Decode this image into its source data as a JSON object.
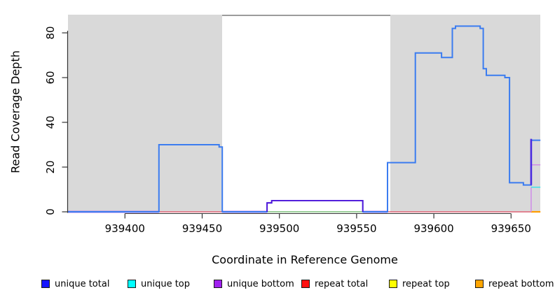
{
  "y_axis": {
    "title": "Read Coverage Depth",
    "ticks": [
      0,
      20,
      40,
      60,
      80
    ]
  },
  "x_axis": {
    "title": "Coordinate in Reference Genome",
    "ticks": [
      939400,
      939450,
      939500,
      939550,
      939600,
      939650
    ],
    "tick_labels": [
      "939400",
      "939450",
      "939500",
      "939550",
      "939600",
      "939650"
    ]
  },
  "legend": {
    "items": [
      {
        "label": "unique total",
        "color": "#1414ff"
      },
      {
        "label": "unique top",
        "color": "#00ffff"
      },
      {
        "label": "unique bottom",
        "color": "#a020f0"
      },
      {
        "label": "repeat total",
        "color": "#ff1010"
      },
      {
        "label": "repeat top",
        "color": "#ffff00"
      },
      {
        "label": "repeat bottom",
        "color": "#ffa500"
      }
    ]
  },
  "chart_data": {
    "type": "line",
    "subtype": "step-coverage-profile",
    "title": "",
    "xlabel": "Coordinate in Reference Genome",
    "ylabel": "Read Coverage Depth",
    "xlim": [
      939363,
      939669
    ],
    "ylim": [
      0,
      88
    ],
    "grid": false,
    "legend_position": "bottom",
    "shaded_regions": [
      {
        "x1": 939363,
        "x2": 939463,
        "fill": "#d9d9d9",
        "meaning": "shaded block left"
      },
      {
        "x1": 939572,
        "x2": 939669,
        "fill": "#d9d9d9",
        "meaning": "shaded block right"
      }
    ],
    "open_region": {
      "x1": 939463,
      "x2": 939572,
      "fill": "#ffffff",
      "top_border": "#9b9b9b"
    },
    "series": [
      {
        "name": "unique total",
        "legend_color": "#1414ff",
        "line_color": "#3b7cf0",
        "steps": [
          [
            939363,
            0
          ],
          [
            939422,
            30
          ],
          [
            939461,
            29
          ],
          [
            939463,
            0
          ],
          [
            939492,
            4
          ],
          [
            939495,
            5
          ],
          [
            939554,
            0
          ],
          [
            939570,
            22
          ],
          [
            939588,
            71
          ],
          [
            939605,
            69
          ],
          [
            939612,
            82
          ],
          [
            939614,
            83
          ],
          [
            939630,
            82
          ],
          [
            939632,
            64
          ],
          [
            939634,
            61
          ],
          [
            939646,
            60
          ],
          [
            939649,
            13
          ],
          [
            939658,
            12
          ],
          [
            939663,
            32
          ]
        ],
        "end_x": 939669
      },
      {
        "name": "unique top",
        "legend_color": "#00ffff",
        "line_color": "#3fe3e8",
        "steps": [
          [
            939363,
            0
          ],
          [
            939663,
            11
          ]
        ],
        "end_x": 939669
      },
      {
        "name": "unique bottom",
        "legend_color": "#a020f0",
        "line_color": "#5512d8",
        "steps": [
          [
            939363,
            0
          ],
          [
            939492,
            4
          ],
          [
            939495,
            5
          ],
          [
            939554,
            0
          ],
          [
            939663,
            21
          ]
        ],
        "end_x": 939669
      },
      {
        "name": "repeat total",
        "legend_color": "#ff1010",
        "line_color": "#e4677a",
        "steps": [
          [
            939363,
            0
          ]
        ],
        "end_x": 939669
      },
      {
        "name": "repeat top",
        "legend_color": "#ffff00",
        "line_color": "#e8e840",
        "steps": [
          [
            939363,
            0
          ]
        ],
        "end_x": 939669
      },
      {
        "name": "repeat bottom",
        "legend_color": "#ffa500",
        "line_color": "#ff9d00",
        "steps": [
          [
            939363,
            0
          ]
        ],
        "end_x": 939669
      }
    ],
    "visible_strokes": {
      "pre": [
        {
          "kind": "h",
          "v": 0,
          "x1": 939363,
          "x2": 939663,
          "color": "#e4677a",
          "w": 1.5
        },
        {
          "kind": "h",
          "v": 0,
          "x1": 939363,
          "x2": 939422,
          "color": "#b47ae8",
          "w": 3
        },
        {
          "kind": "h",
          "v": 0,
          "x1": 939463,
          "x2": 939492,
          "color": "#b47ae8",
          "w": 3
        },
        {
          "kind": "h",
          "v": 0,
          "x1": 939554,
          "x2": 939570,
          "color": "#b47ae8",
          "w": 3
        },
        {
          "kind": "h",
          "v": 0,
          "x1": 939492,
          "x2": 939554,
          "color": "#7dd88d",
          "w": 1.5
        },
        {
          "kind": "h",
          "v": 0,
          "x1": 939663,
          "x2": 939669,
          "color": "#ff9d00",
          "w": 2.2
        }
      ],
      "post": [
        {
          "kind": "path",
          "points": [
            [
              939492,
              0
            ],
            [
              939492,
              4
            ],
            [
              939495,
              4
            ],
            [
              939495,
              5
            ],
            [
              939554,
              5
            ],
            [
              939554,
              0
            ]
          ],
          "color": "#5512d8",
          "w": 1.8
        },
        {
          "kind": "v",
          "x": 939663,
          "v1": 0,
          "v2": 11,
          "color": "#cf8be8",
          "w": 1.5
        },
        {
          "kind": "h",
          "v": 11,
          "x1": 939663,
          "x2": 939669,
          "color": "#3fe3e8",
          "w": 1.5
        },
        {
          "kind": "h",
          "v": 21,
          "x1": 939663,
          "x2": 939669,
          "color": "#cf8be8",
          "w": 1.5
        },
        {
          "kind": "v",
          "x": 939663,
          "v1": 12,
          "v2": 32.6,
          "color": "#4a2ae0",
          "w": 2.6
        }
      ]
    }
  }
}
